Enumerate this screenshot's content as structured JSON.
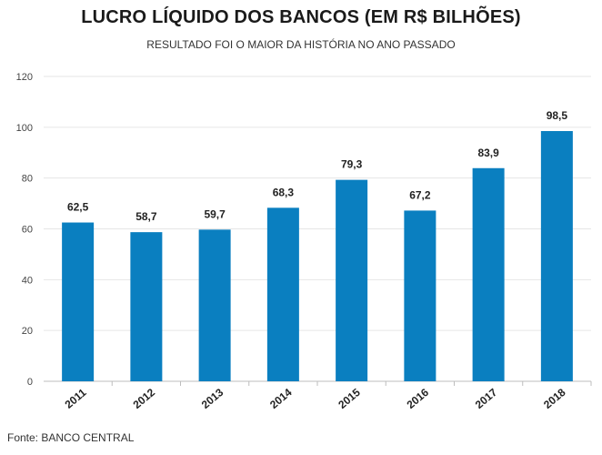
{
  "chart_data": {
    "type": "bar",
    "title": "LUCRO LÍQUIDO DOS BANCOS (EM R$ BILHÕES)",
    "subtitle": "RESULTADO FOI O MAIOR DA HISTÓRIA NO ANO PASSADO",
    "categories": [
      "2011",
      "2012",
      "2013",
      "2014",
      "2015",
      "2016",
      "2017",
      "2018"
    ],
    "values": [
      62.5,
      58.7,
      59.7,
      68.3,
      79.3,
      67.2,
      83.9,
      98.5
    ],
    "data_labels": [
      "62,5",
      "58,7",
      "59,7",
      "68,3",
      "79,3",
      "67,2",
      "83,9",
      "98,5"
    ],
    "ylim": [
      0,
      120
    ],
    "yticks": [
      0,
      20,
      40,
      60,
      80,
      100,
      120
    ],
    "grid": true,
    "bar_color": "#0a7fc0",
    "xlabel": "",
    "ylabel": ""
  },
  "source": "Fonte: BANCO CENTRAL"
}
